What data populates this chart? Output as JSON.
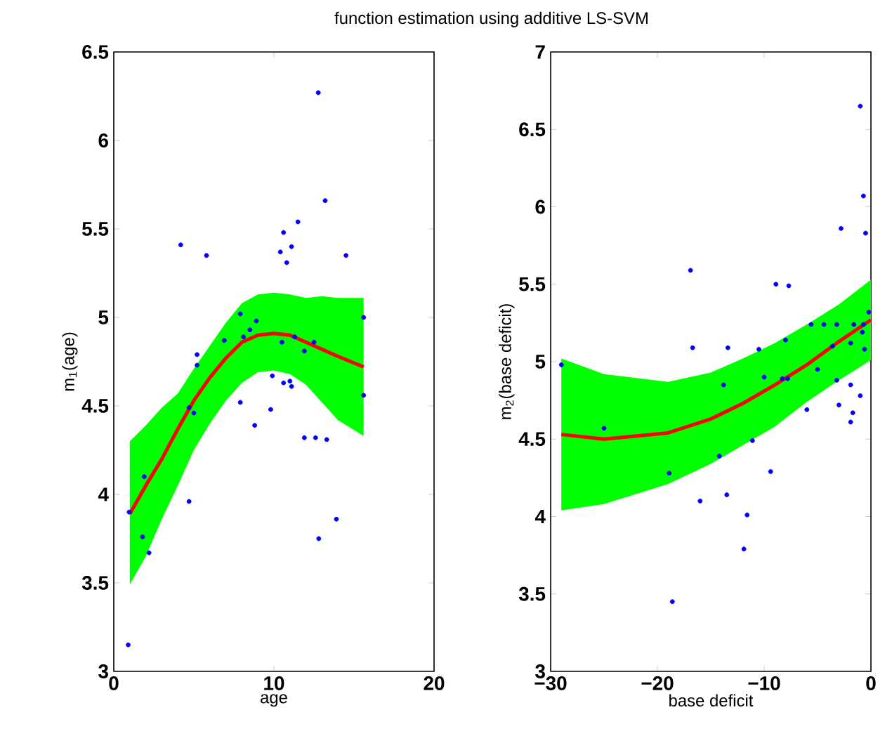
{
  "chart_data": [
    {
      "type": "scatter",
      "title": "function estimation using additive LS-SVM",
      "xlabel": "age",
      "ylabel": "m$_{1}$(age)",
      "xlim": [
        0,
        20
      ],
      "ylim": [
        3,
        6.5
      ],
      "xticks": [
        0,
        10,
        20
      ],
      "yticks": [
        3,
        3.5,
        4,
        4.5,
        5,
        5.5,
        6,
        6.5
      ],
      "marker": "circle",
      "series": [
        {
          "color": "#0000ff",
          "x": [
            4.18,
            5.79,
            12.77,
            13.2,
            11.5,
            10.6,
            11.1,
            10.4,
            10.8,
            14.5,
            15.6,
            7.9,
            8.9,
            8.5,
            8.1,
            6.9,
            10.5,
            11.3,
            11.9,
            12.5,
            5.2,
            5.2,
            9.9,
            0.96,
            1.9,
            1.8,
            2.2,
            0.9,
            4.7,
            4.7,
            5.0,
            7.9,
            8.8,
            9.8,
            10.6,
            11.0,
            11.1,
            11.9,
            12.6,
            13.3,
            12.8,
            13.9,
            15.6
          ],
          "values": [
            5.41,
            5.35,
            6.27,
            5.66,
            5.54,
            5.48,
            5.4,
            5.37,
            5.31,
            5.35,
            5.0,
            5.02,
            4.98,
            4.93,
            4.89,
            4.87,
            4.86,
            4.89,
            4.81,
            4.86,
            4.79,
            4.73,
            4.67,
            3.9,
            4.1,
            3.76,
            3.67,
            3.15,
            3.96,
            4.49,
            4.46,
            4.52,
            4.39,
            4.48,
            4.63,
            4.64,
            4.61,
            4.32,
            4.32,
            4.31,
            3.75,
            3.86,
            4.56
          ]
        },
        {
          "type": "line",
          "marker": "none",
          "color": "#ff0000",
          "x": [
            1,
            2,
            3,
            4,
            5,
            6,
            7,
            8,
            9,
            10,
            11,
            12,
            13,
            14,
            15.6
          ],
          "values": [
            3.89,
            4.05,
            4.2,
            4.37,
            4.53,
            4.66,
            4.77,
            4.86,
            4.9,
            4.91,
            4.9,
            4.86,
            4.82,
            4.78,
            4.72
          ],
          "lower": [
            3.49,
            3.65,
            3.86,
            4.05,
            4.25,
            4.4,
            4.53,
            4.63,
            4.69,
            4.7,
            4.68,
            4.62,
            4.52,
            4.42,
            4.33
          ],
          "upper": [
            4.3,
            4.39,
            4.49,
            4.57,
            4.71,
            4.84,
            4.97,
            5.08,
            5.13,
            5.14,
            5.13,
            5.11,
            5.12,
            5.11,
            5.11
          ]
        }
      ]
    },
    {
      "type": "scatter",
      "xlabel": "base deficit",
      "ylabel": "m$_{2}$(base deficit)",
      "xlim": [
        -30,
        0
      ],
      "ylim": [
        3,
        7
      ],
      "xticks": [
        {
          "value": -30,
          "label": "−30"
        },
        {
          "value": -20,
          "label": "−20"
        },
        {
          "value": -10,
          "label": "−10"
        },
        0
      ],
      "yticks": [
        3,
        3.5,
        4,
        4.5,
        5,
        5.5,
        6,
        6.5,
        7
      ],
      "marker": "circle",
      "series": [
        {
          "color": "#0000ff",
          "x": [
            -29.0,
            -1.0,
            -0.7,
            -0.5,
            -2.8,
            -16.9,
            -8.9,
            -7.7,
            -16.7,
            -13.4,
            -10.5,
            -8.0,
            -5.6,
            -4.4,
            -3.2,
            -1.6,
            -0.7,
            -0.2,
            -3.6,
            -1.9,
            -0.8,
            -0.6,
            -25.0,
            -13.8,
            -10.0,
            -8.3,
            -7.8,
            -5.0,
            -3.2,
            -1.9,
            -1.0,
            -3.0,
            -1.7,
            -1.9,
            -6.0,
            -18.9,
            -14.2,
            -11.1,
            -9.4,
            -16.0,
            -13.5,
            -11.6,
            -11.9,
            -18.6
          ],
          "values": [
            4.98,
            6.65,
            6.07,
            5.83,
            5.86,
            5.59,
            5.5,
            5.49,
            5.09,
            5.09,
            5.08,
            5.14,
            5.24,
            5.24,
            5.24,
            5.24,
            5.24,
            5.32,
            5.1,
            5.12,
            5.19,
            5.08,
            4.57,
            4.85,
            4.9,
            4.89,
            4.89,
            4.95,
            4.88,
            4.85,
            4.78,
            4.72,
            4.67,
            4.61,
            4.69,
            4.28,
            4.39,
            4.49,
            4.29,
            4.1,
            4.14,
            4.01,
            3.79,
            3.45
          ]
        },
        {
          "type": "line",
          "marker": "none",
          "color": "#ff0000",
          "x": [
            -29,
            -25,
            -19,
            -15,
            -12,
            -9,
            -6,
            -3,
            0
          ],
          "values": [
            4.53,
            4.5,
            4.54,
            4.63,
            4.73,
            4.85,
            4.98,
            5.13,
            5.27
          ],
          "lower": [
            4.04,
            4.08,
            4.21,
            4.34,
            4.46,
            4.58,
            4.74,
            4.88,
            5.01
          ],
          "upper": [
            5.02,
            4.92,
            4.87,
            4.93,
            5.02,
            5.12,
            5.24,
            5.37,
            5.53
          ]
        }
      ]
    }
  ]
}
